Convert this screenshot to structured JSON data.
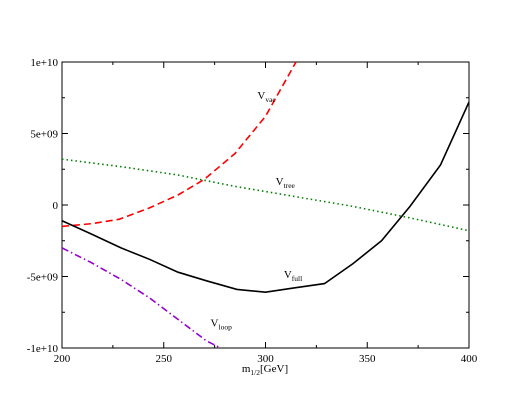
{
  "chart_data": {
    "type": "line",
    "xlabel_main": "m",
    "xlabel_sub": "1/2",
    "xlabel_unit": "[GeV]",
    "ylabel": "",
    "title": "",
    "xlim": [
      200,
      400
    ],
    "ylim": [
      -10000000000,
      10000000000
    ],
    "grid": false,
    "x_ticks": [
      200,
      250,
      300,
      350,
      400
    ],
    "x_tick_labels": [
      "200",
      "250",
      "300",
      "350",
      "400"
    ],
    "y_ticks": [
      -10000000000,
      -5000000000,
      0,
      5000000000,
      10000000000
    ],
    "y_tick_labels": [
      "-1e+10",
      "-5e+09",
      "0",
      "5e+09",
      "1e+10"
    ],
    "series": [
      {
        "name": "V_vac",
        "label_main": "V",
        "label_sub": "vac",
        "label_at": [
          296,
          7400000000
        ],
        "color": "#ff0000",
        "dash": "7,4",
        "x": [
          200,
          215,
          228,
          243,
          257,
          270,
          285,
          300,
          315
        ],
        "y": [
          -1500000000,
          -1300000000,
          -1000000000,
          -200000000,
          700000000,
          1800000000,
          3600000000,
          6200000000,
          10000000000
        ]
      },
      {
        "name": "V_tree",
        "label_main": "V",
        "label_sub": "tree",
        "label_at": [
          305,
          1400000000
        ],
        "color": "#008000",
        "dash": "1.5,3",
        "x": [
          200,
          228,
          257,
          285,
          314,
          343,
          371,
          400
        ],
        "y": [
          3200000000,
          2700000000,
          2100000000,
          1300000000,
          600000000,
          -100000000,
          -900000000,
          -1800000000
        ]
      },
      {
        "name": "V_full",
        "label_main": "V",
        "label_sub": "full",
        "label_at": [
          309,
          -5100000000
        ],
        "color": "#000000",
        "dash": "",
        "x": [
          200,
          214,
          229,
          243,
          257,
          271,
          286,
          300,
          314,
          329,
          343,
          357,
          371,
          386,
          400
        ],
        "y": [
          -1100000000,
          -2000000000,
          -3000000000,
          -3800000000,
          -4700000000,
          -5300000000,
          -5900000000,
          -6100000000,
          -5800000000,
          -5500000000,
          -4100000000,
          -2500000000,
          -100000000,
          2800000000,
          7200000000
        ]
      },
      {
        "name": "V_loop",
        "label_main": "V",
        "label_sub": "loop",
        "label_at": [
          273,
          -8500000000
        ],
        "color": "#9400d3",
        "dash": "7,3,1.5,3",
        "x": [
          200,
          214,
          229,
          243,
          257,
          271,
          278
        ],
        "y": [
          -3000000000,
          -4000000000,
          -5200000000,
          -6500000000,
          -8000000000,
          -9500000000,
          -10000000000
        ]
      }
    ]
  }
}
